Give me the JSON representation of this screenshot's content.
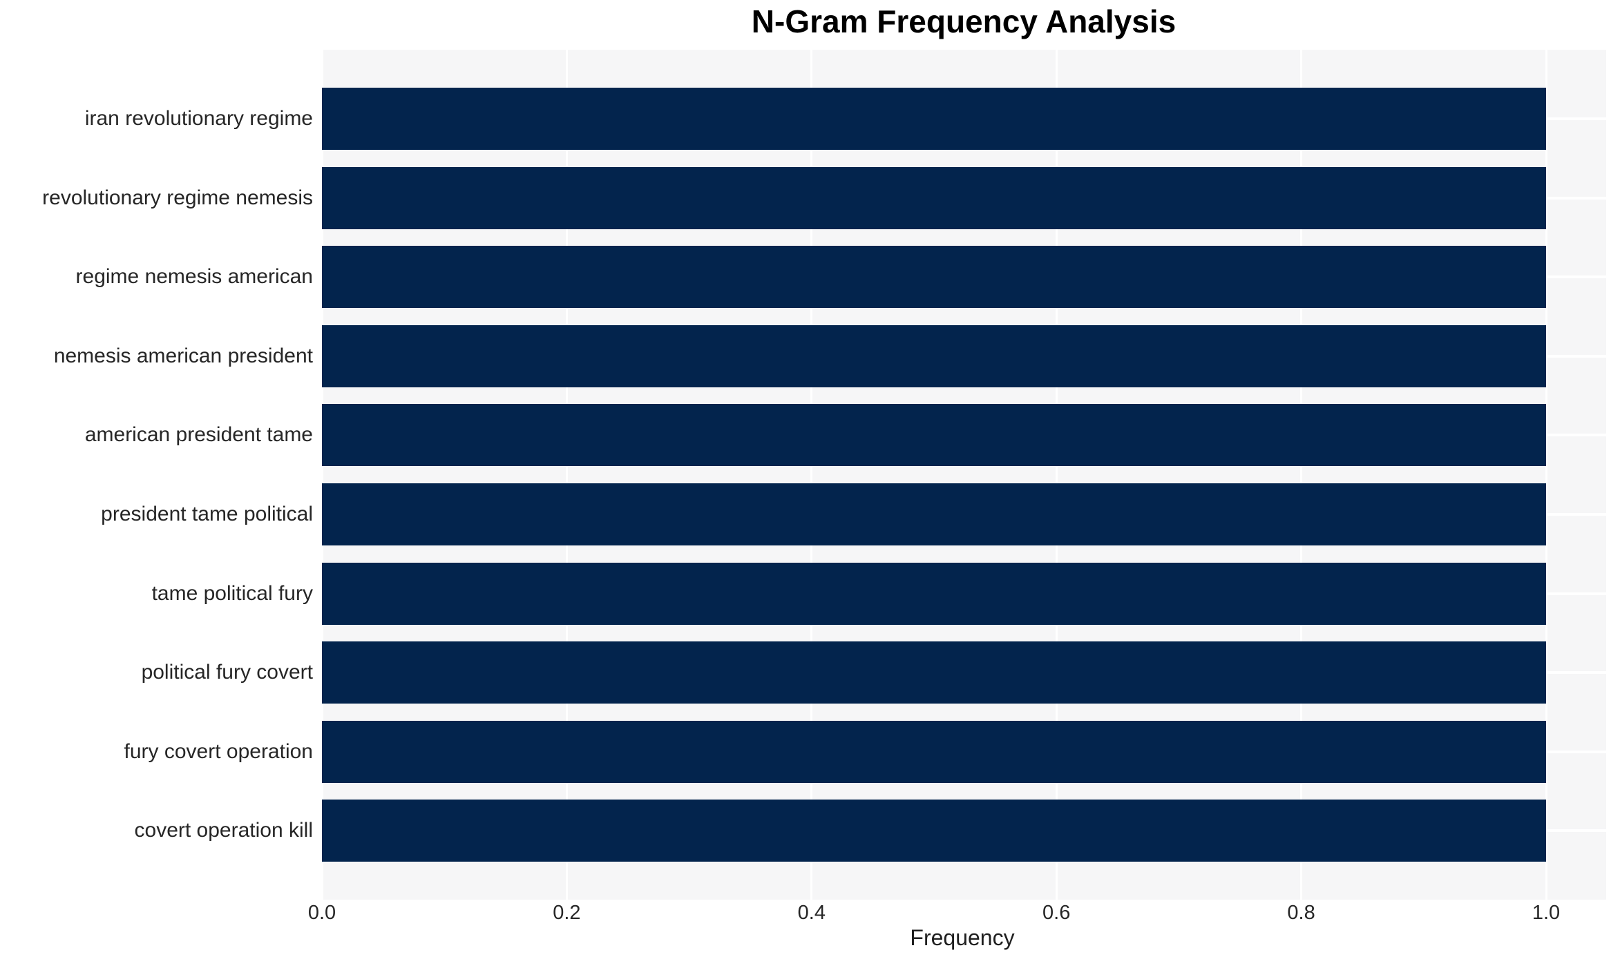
{
  "chart_data": {
    "type": "bar",
    "orientation": "horizontal",
    "title": "N-Gram Frequency Analysis",
    "xlabel": "Frequency",
    "ylabel": "",
    "categories": [
      "iran revolutionary regime",
      "revolutionary regime nemesis",
      "regime nemesis american",
      "nemesis american president",
      "american president tame",
      "president tame political",
      "tame political fury",
      "political fury covert",
      "fury covert operation",
      "covert operation kill"
    ],
    "values": [
      1.0,
      1.0,
      1.0,
      1.0,
      1.0,
      1.0,
      1.0,
      1.0,
      1.0,
      1.0
    ],
    "x_ticks": [
      0.0,
      0.2,
      0.4,
      0.6,
      0.8,
      1.0
    ],
    "x_tick_labels": [
      "0.0",
      "0.2",
      "0.4",
      "0.6",
      "0.8",
      "1.0"
    ],
    "xlim": [
      0,
      1.049
    ],
    "grid": true,
    "legend": false,
    "colors": {
      "bar": "#03244d",
      "plot_background": "#f6f6f7",
      "grid": "#ffffff",
      "tick_text": "#262626",
      "title_text": "#000000"
    }
  }
}
